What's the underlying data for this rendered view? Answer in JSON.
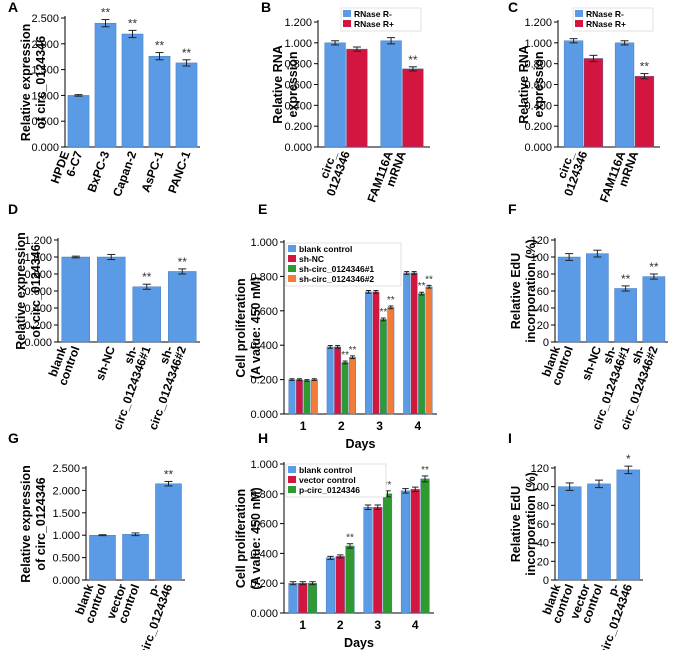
{
  "colors": {
    "blue": "#5b9be6",
    "red": "#d3163f",
    "green": "#2f9a2f",
    "orange": "#f07c37",
    "axis": "#000000",
    "bar_edge": "#3d6fb0"
  },
  "chart_data": [
    {
      "id": "A",
      "type": "bar",
      "panel_label": "A",
      "ylabel": [
        "Relative expression",
        "of circ_0124346"
      ],
      "ylim": [
        0,
        2.5
      ],
      "ticks": [
        "0.000",
        "0.500",
        "1.000",
        "1.500",
        "2.000",
        "2.500"
      ],
      "categories": [
        [
          "HPDE",
          "6-C7"
        ],
        [
          "BxPC-3"
        ],
        [
          "Capan-2"
        ],
        [
          "AsPC-1"
        ],
        [
          "PANC-1"
        ]
      ],
      "series": [
        {
          "name": "",
          "color_key": "blue",
          "values": [
            1.0,
            2.4,
            2.19,
            1.76,
            1.63
          ],
          "errors": [
            0.015,
            0.07,
            0.07,
            0.07,
            0.06
          ],
          "sig": [
            "",
            "**",
            "**",
            "**",
            "**"
          ]
        }
      ]
    },
    {
      "id": "B",
      "type": "bar",
      "panel_label": "B",
      "ylabel": [
        "Relative RNA",
        "expression"
      ],
      "ylim": [
        0,
        1.2
      ],
      "ticks": [
        "0.000",
        "0.200",
        "0.400",
        "0.600",
        "0.800",
        "1.000",
        "1.200"
      ],
      "categories": [
        [
          "circ_",
          "0124346"
        ],
        [
          "FAM116A",
          "mRNA"
        ]
      ],
      "legend": [
        "RNase R-",
        "RNase R+"
      ],
      "series": [
        {
          "name": "RNase R-",
          "color_key": "blue",
          "values": [
            1.0,
            1.02
          ],
          "errors": [
            0.02,
            0.03
          ],
          "sig": [
            "",
            ""
          ]
        },
        {
          "name": "RNase R+",
          "color_key": "red",
          "values": [
            0.94,
            0.75
          ],
          "errors": [
            0.02,
            0.02
          ],
          "sig": [
            "",
            "**"
          ]
        }
      ]
    },
    {
      "id": "C",
      "type": "bar",
      "panel_label": "C",
      "ylabel": [
        "Relative RNA",
        "expression"
      ],
      "ylim": [
        0,
        1.2
      ],
      "ticks": [
        "0.000",
        "0.200",
        "0.400",
        "0.600",
        "0.800",
        "1.000",
        "1.200"
      ],
      "categories": [
        [
          "circ_",
          "0124346"
        ],
        [
          "FAM116A",
          "mRNA"
        ]
      ],
      "legend": [
        "RNase R-",
        "RNase R+"
      ],
      "series": [
        {
          "name": "RNase R-",
          "color_key": "blue",
          "values": [
            1.02,
            1.0
          ],
          "errors": [
            0.02,
            0.02
          ],
          "sig": [
            "",
            ""
          ]
        },
        {
          "name": "RNase R+",
          "color_key": "red",
          "values": [
            0.85,
            0.68
          ],
          "errors": [
            0.03,
            0.025
          ],
          "sig": [
            "",
            "**"
          ]
        }
      ]
    },
    {
      "id": "D",
      "type": "bar",
      "panel_label": "D",
      "ylabel": [
        "Relative expression",
        "of circ_0124346"
      ],
      "ylim": [
        0,
        1.2
      ],
      "ticks": [
        "0.000",
        "0.200",
        "0.400",
        "0.600",
        "0.800",
        "1.000",
        "1.200"
      ],
      "categories": [
        [
          "blank",
          "control"
        ],
        [
          "sh-NC"
        ],
        [
          "sh-",
          "circ_0124346#1"
        ],
        [
          "sh-",
          "circ_0124346#2"
        ]
      ],
      "series": [
        {
          "name": "",
          "color_key": "blue",
          "values": [
            1.0,
            1.0,
            0.65,
            0.83
          ],
          "errors": [
            0.01,
            0.03,
            0.03,
            0.03
          ],
          "sig": [
            "",
            "",
            "**",
            "**"
          ]
        }
      ]
    },
    {
      "id": "E",
      "type": "bar",
      "panel_label": "E",
      "ylabel": [
        "Cell proliferation",
        "(A value: 450 nM)"
      ],
      "xlabel": "Days",
      "ylim": [
        0,
        1.0
      ],
      "ticks": [
        "0.000",
        "0.200",
        "0.400",
        "0.600",
        "0.800",
        "1.000"
      ],
      "categories": [
        [
          "1"
        ],
        [
          "2"
        ],
        [
          "3"
        ],
        [
          "4"
        ]
      ],
      "legend": [
        "blank control",
        "sh-NC",
        "sh-circ_0124346#1",
        "sh-circ_0124346#2"
      ],
      "series": [
        {
          "name": "blank control",
          "color_key": "blue",
          "values": [
            0.2,
            0.39,
            0.71,
            0.82
          ],
          "errors": [
            0.005,
            0.008,
            0.008,
            0.008
          ],
          "sig": [
            "",
            "",
            "",
            ""
          ]
        },
        {
          "name": "sh-NC",
          "color_key": "red",
          "values": [
            0.2,
            0.39,
            0.71,
            0.82
          ],
          "errors": [
            0.005,
            0.008,
            0.008,
            0.008
          ],
          "sig": [
            "",
            "",
            "",
            ""
          ]
        },
        {
          "name": "sh-circ_0124346#1",
          "color_key": "green",
          "values": [
            0.195,
            0.3,
            0.55,
            0.7
          ],
          "errors": [
            0.005,
            0.008,
            0.008,
            0.008
          ],
          "sig": [
            "",
            "**",
            "**",
            "**"
          ]
        },
        {
          "name": "sh-circ_0124346#2",
          "color_key": "orange",
          "values": [
            0.2,
            0.33,
            0.62,
            0.74
          ],
          "errors": [
            0.005,
            0.008,
            0.008,
            0.008
          ],
          "sig": [
            "",
            "**",
            "**",
            "**"
          ]
        }
      ]
    },
    {
      "id": "F",
      "type": "bar",
      "panel_label": "F",
      "ylabel": [
        "Relative EdU",
        "incorporation (%)"
      ],
      "ylim": [
        0,
        120
      ],
      "ticks": [
        "0",
        "20",
        "40",
        "60",
        "80",
        "100",
        "120"
      ],
      "categories": [
        [
          "blank",
          "control"
        ],
        [
          "sh-NC"
        ],
        [
          "sh-",
          "circ_0124346#1"
        ],
        [
          "sh-",
          "circ_0124346#2"
        ]
      ],
      "series": [
        {
          "name": "",
          "color_key": "blue",
          "values": [
            100,
            104,
            63,
            77
          ],
          "errors": [
            4,
            4,
            3,
            3
          ],
          "sig": [
            "",
            "",
            "**",
            "**"
          ]
        }
      ]
    },
    {
      "id": "G",
      "type": "bar",
      "panel_label": "G",
      "ylabel": [
        "Relative expression",
        "of circ_0124346"
      ],
      "ylim": [
        0,
        2.5
      ],
      "ticks": [
        "0.000",
        "0.500",
        "1.000",
        "1.500",
        "2.000",
        "2.500"
      ],
      "categories": [
        [
          "blank",
          "control"
        ],
        [
          "vector",
          "control"
        ],
        [
          "p-",
          "circ_0124346"
        ]
      ],
      "series": [
        {
          "name": "",
          "color_key": "blue",
          "values": [
            1.0,
            1.02,
            2.15
          ],
          "errors": [
            0.01,
            0.03,
            0.05
          ],
          "sig": [
            "",
            "",
            "**"
          ]
        }
      ]
    },
    {
      "id": "H",
      "type": "bar",
      "panel_label": "H",
      "ylabel": [
        "Cell proliferation",
        "(A value: 450 nM)"
      ],
      "xlabel": "Days",
      "ylim": [
        0,
        1.0
      ],
      "ticks": [
        "0.000",
        "0.200",
        "0.400",
        "0.600",
        "0.800",
        "1.000"
      ],
      "categories": [
        [
          "1"
        ],
        [
          "2"
        ],
        [
          "3"
        ],
        [
          "4"
        ]
      ],
      "legend": [
        "blank control",
        "vector control",
        "p-circ_0124346"
      ],
      "series": [
        {
          "name": "blank control",
          "color_key": "blue",
          "values": [
            0.2,
            0.37,
            0.71,
            0.82
          ],
          "errors": [
            0.01,
            0.01,
            0.015,
            0.015
          ],
          "sig": [
            "",
            "",
            "",
            ""
          ]
        },
        {
          "name": "vector control",
          "color_key": "red",
          "values": [
            0.2,
            0.38,
            0.71,
            0.83
          ],
          "errors": [
            0.01,
            0.01,
            0.015,
            0.015
          ],
          "sig": [
            "",
            "",
            "",
            ""
          ]
        },
        {
          "name": "p-circ_0124346",
          "color_key": "green",
          "values": [
            0.2,
            0.45,
            0.8,
            0.9
          ],
          "errors": [
            0.01,
            0.015,
            0.02,
            0.02
          ],
          "sig": [
            "",
            "**",
            "**",
            "**"
          ]
        }
      ]
    },
    {
      "id": "I",
      "type": "bar",
      "panel_label": "I",
      "ylabel": [
        "Relative EdU",
        "incorporation (%)"
      ],
      "ylim": [
        0,
        120
      ],
      "ticks": [
        "0",
        "20",
        "40",
        "60",
        "80",
        "100",
        "120"
      ],
      "categories": [
        [
          "blank",
          "control"
        ],
        [
          "vector",
          "control"
        ],
        [
          "p-",
          "circ_0124346"
        ]
      ],
      "series": [
        {
          "name": "",
          "color_key": "blue",
          "values": [
            100,
            103,
            118
          ],
          "errors": [
            4,
            4,
            4
          ],
          "sig": [
            "",
            "",
            "*"
          ]
        }
      ]
    }
  ]
}
